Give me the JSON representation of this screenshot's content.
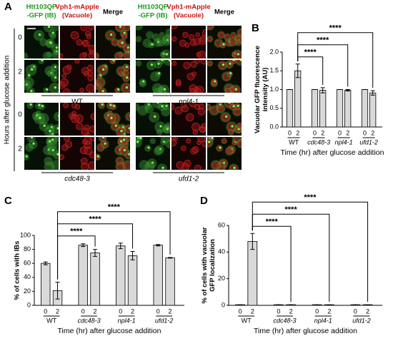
{
  "panel_a": {
    "panel": "A",
    "column_headers": [
      [
        "Htt103QP",
        "-GFP (IB)"
      ],
      [
        "Vph1-mApple",
        "(Vacuole)"
      ],
      [
        "Merge"
      ]
    ],
    "row_labels": [
      "0",
      "2"
    ],
    "strains": [
      "WT",
      "npl4-1",
      "cdc48-3",
      "ufd1-2"
    ],
    "ylabel": "Hours after glucose addition"
  },
  "chart_data": [
    {
      "type": "bar",
      "panel": "B",
      "ylabel": [
        "Vacuolar GFP fluorescence",
        "intensity (AU)"
      ],
      "xlabel": "Time (hr) after glucose addition",
      "groups": [
        "WT",
        "cdc48-3",
        "npl4-1",
        "ufd1-2"
      ],
      "categories": [
        "0",
        "2",
        "0",
        "2",
        "0",
        "2",
        "0",
        "2"
      ],
      "values": [
        1.0,
        1.5,
        1.0,
        0.98,
        1.0,
        0.98,
        1.0,
        0.91
      ],
      "errors": [
        0,
        0.18,
        0,
        0.07,
        0,
        0.02,
        0,
        0.06
      ],
      "color": "#d9d9d9",
      "ylim": [
        0,
        2.0
      ],
      "yticks": [
        {
          "value": 0,
          "label": "0.0"
        },
        {
          "value": 0.5,
          "label": "0.5"
        },
        {
          "value": 1.0,
          "label": "1.0"
        },
        {
          "value": 1.5,
          "label": "1.5"
        },
        {
          "value": 2.0,
          "label": "2.0"
        }
      ],
      "significance": [
        "****",
        "****",
        "****"
      ]
    },
    {
      "type": "bar",
      "panel": "C",
      "ylabel": [
        "% of cells with IBs"
      ],
      "xlabel": "Time (hr) after glucose addition",
      "groups": [
        "WT",
        "cdc48-3",
        "npl4-1",
        "ufd1-2"
      ],
      "categories": [
        "0",
        "2",
        "0",
        "2",
        "0",
        "2",
        "0",
        "2"
      ],
      "values": [
        60,
        21,
        86,
        75,
        85,
        71,
        86,
        68
      ],
      "errors": [
        2,
        12,
        2,
        5,
        4,
        6,
        1,
        0.5
      ],
      "color": "#d9d9d9",
      "ylim": [
        0,
        100
      ],
      "yticks": [
        0,
        20,
        40,
        60,
        80,
        100
      ],
      "significance": [
        "****",
        "****",
        "****"
      ]
    },
    {
      "type": "bar",
      "panel": "D",
      "ylabel": [
        "% of cells with vacuolar",
        "GFP localization"
      ],
      "xlabel": "Time (hr) after glucose addition",
      "groups": [
        "WT",
        "cdc48-3",
        "npl4-1",
        "ufd1-2"
      ],
      "categories": [
        "0",
        "2",
        "0",
        "2",
        "0",
        "2",
        "0",
        "2"
      ],
      "values": [
        0.5,
        48,
        0.5,
        0.5,
        0.5,
        0.5,
        0.5,
        0.5
      ],
      "errors": [
        0,
        6,
        0,
        0,
        0,
        0,
        0,
        0
      ],
      "color": "#d9d9d9",
      "ylim": [
        0,
        60
      ],
      "yticks": [
        0,
        20,
        40,
        60
      ],
      "significance": [
        "****",
        "****",
        "****"
      ]
    }
  ]
}
